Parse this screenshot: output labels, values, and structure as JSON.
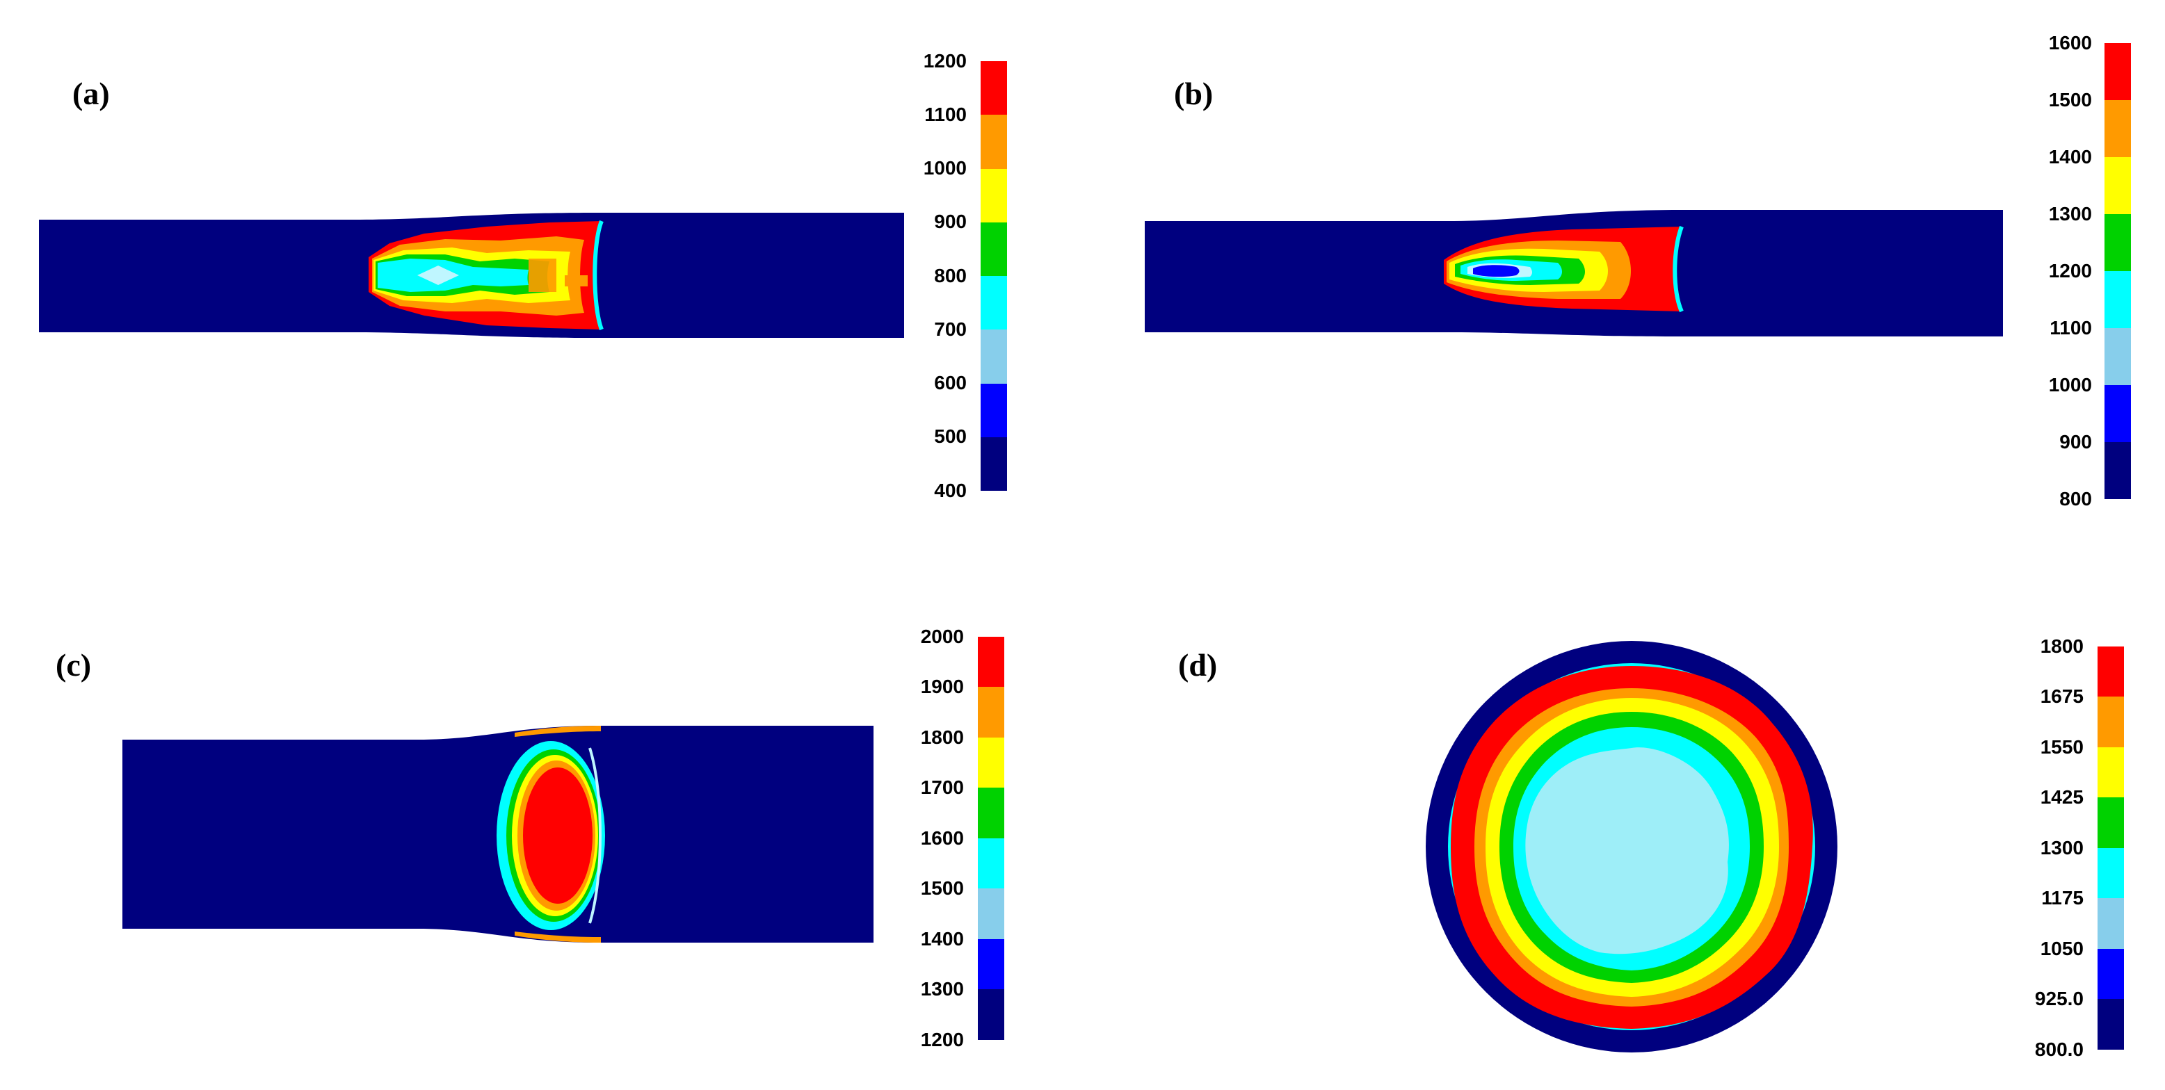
{
  "colors": [
    "#00007f",
    "#0000ff",
    "#87ceeb",
    "#00ffff",
    "#00d200",
    "#ffff00",
    "#ff9a00",
    "#ff0000"
  ],
  "panels": [
    {
      "label": "(a)",
      "ticks": [
        "1200",
        "1100",
        "1000",
        "900",
        "800",
        "700",
        "600",
        "500",
        "400"
      ]
    },
    {
      "label": "(b)",
      "ticks": [
        "1600",
        "1500",
        "1400",
        "1300",
        "1200",
        "1100",
        "1000",
        "900",
        "800"
      ]
    },
    {
      "label": "(c)",
      "ticks": [
        "2000",
        "1900",
        "1800",
        "1700",
        "1600",
        "1500",
        "1400",
        "1300",
        "1200"
      ]
    },
    {
      "label": "(d)",
      "ticks": [
        "1800",
        "1675",
        "1550",
        "1425",
        "1300",
        "1175",
        "1050",
        "925.0",
        "800.0"
      ]
    }
  ]
}
